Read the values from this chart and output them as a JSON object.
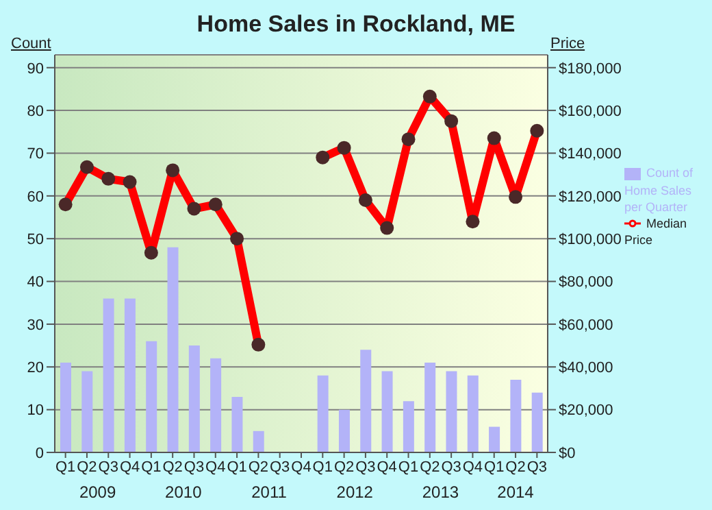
{
  "chart_data": {
    "type": "bar",
    "title": "Home Sales in Rockland, ME",
    "ylabel": "Count",
    "y2label": "Price",
    "categories": [
      "Q1",
      "Q2",
      "Q3",
      "Q4",
      "Q1",
      "Q2",
      "Q3",
      "Q4",
      "Q1",
      "Q2",
      "Q3",
      "Q4",
      "Q1",
      "Q2",
      "Q3",
      "Q4",
      "Q1",
      "Q2",
      "Q3",
      "Q4",
      "Q1",
      "Q2",
      "Q3"
    ],
    "annotations": [
      "2009",
      "2010",
      "2011",
      "2012",
      "2013",
      "2014"
    ],
    "series": [
      {
        "name": "Count of Home Sales per Quarter",
        "type": "bar",
        "color": "#b3b3f8",
        "values": [
          21,
          19,
          36,
          36,
          26,
          48,
          25,
          22,
          13,
          5,
          null,
          null,
          18,
          10,
          24,
          19,
          12,
          21,
          19,
          18,
          6,
          17,
          14
        ]
      },
      {
        "name": "Median Price",
        "type": "line",
        "axis": "y2",
        "color": "#ff0000",
        "marker": "circle",
        "values": [
          116000,
          133500,
          128000,
          126500,
          93400,
          132000,
          114000,
          116000,
          100000,
          50400,
          null,
          null,
          138000,
          142500,
          118000,
          105000,
          146500,
          166500,
          155000,
          108000,
          147000,
          119500,
          150500
        ]
      }
    ],
    "ylim": [
      0,
      93
    ],
    "yticks": [
      0,
      10,
      20,
      30,
      40,
      50,
      60,
      70,
      80,
      90
    ],
    "y2lim": [
      0,
      186000
    ],
    "y2ticks": [
      {
        "value": 0,
        "label": "$0"
      },
      {
        "value": 20000,
        "label": "$20,000"
      },
      {
        "value": 40000,
        "label": "$40,000"
      },
      {
        "value": 60000,
        "label": "$60,000"
      },
      {
        "value": 80000,
        "label": "$80,000"
      },
      {
        "value": 100000,
        "label": "$100,000"
      },
      {
        "value": 120000,
        "label": "$120,000"
      },
      {
        "value": 140000,
        "label": "$140,000"
      },
      {
        "value": 160000,
        "label": "$160,000"
      },
      {
        "value": 180000,
        "label": "$180,000"
      }
    ],
    "grid": "y",
    "legend": "right"
  }
}
